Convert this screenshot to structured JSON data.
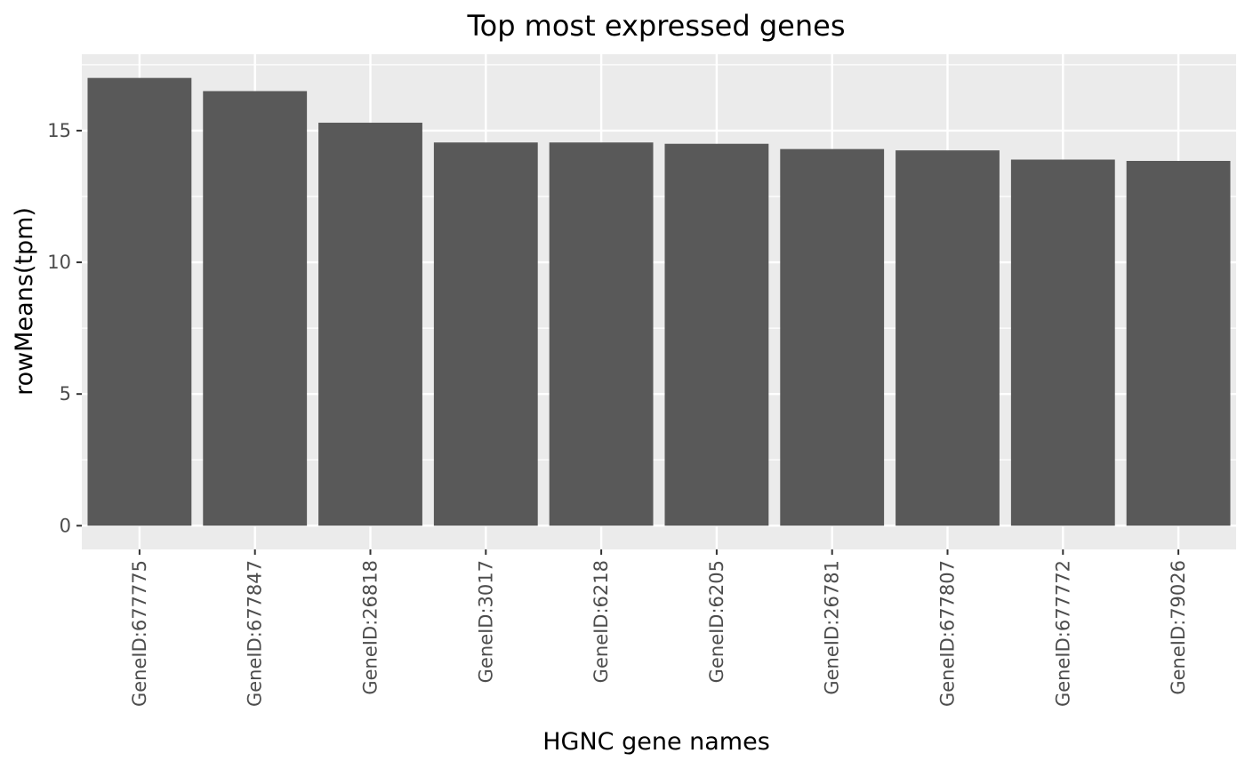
{
  "chart_data": {
    "type": "bar",
    "title": "Top most expressed genes",
    "xlabel": "HGNC gene names",
    "ylabel": "rowMeans(tpm)",
    "categories": [
      "GeneID:677775",
      "GeneID:677847",
      "GeneID:26818",
      "GeneID:3017",
      "GeneID:6218",
      "GeneID:6205",
      "GeneID:26781",
      "GeneID:677807",
      "GeneID:677772",
      "GeneID:79026"
    ],
    "values": [
      17.0,
      16.5,
      15.3,
      14.55,
      14.55,
      14.5,
      14.3,
      14.25,
      13.9,
      13.85
    ],
    "yticks": [
      0,
      5,
      10,
      15
    ],
    "ylim": [
      -0.9,
      17.9
    ],
    "grid": true,
    "colors": {
      "bar": "#595959",
      "panel": "#ebebeb",
      "grid": "#ffffff",
      "tick": "#333333"
    }
  }
}
